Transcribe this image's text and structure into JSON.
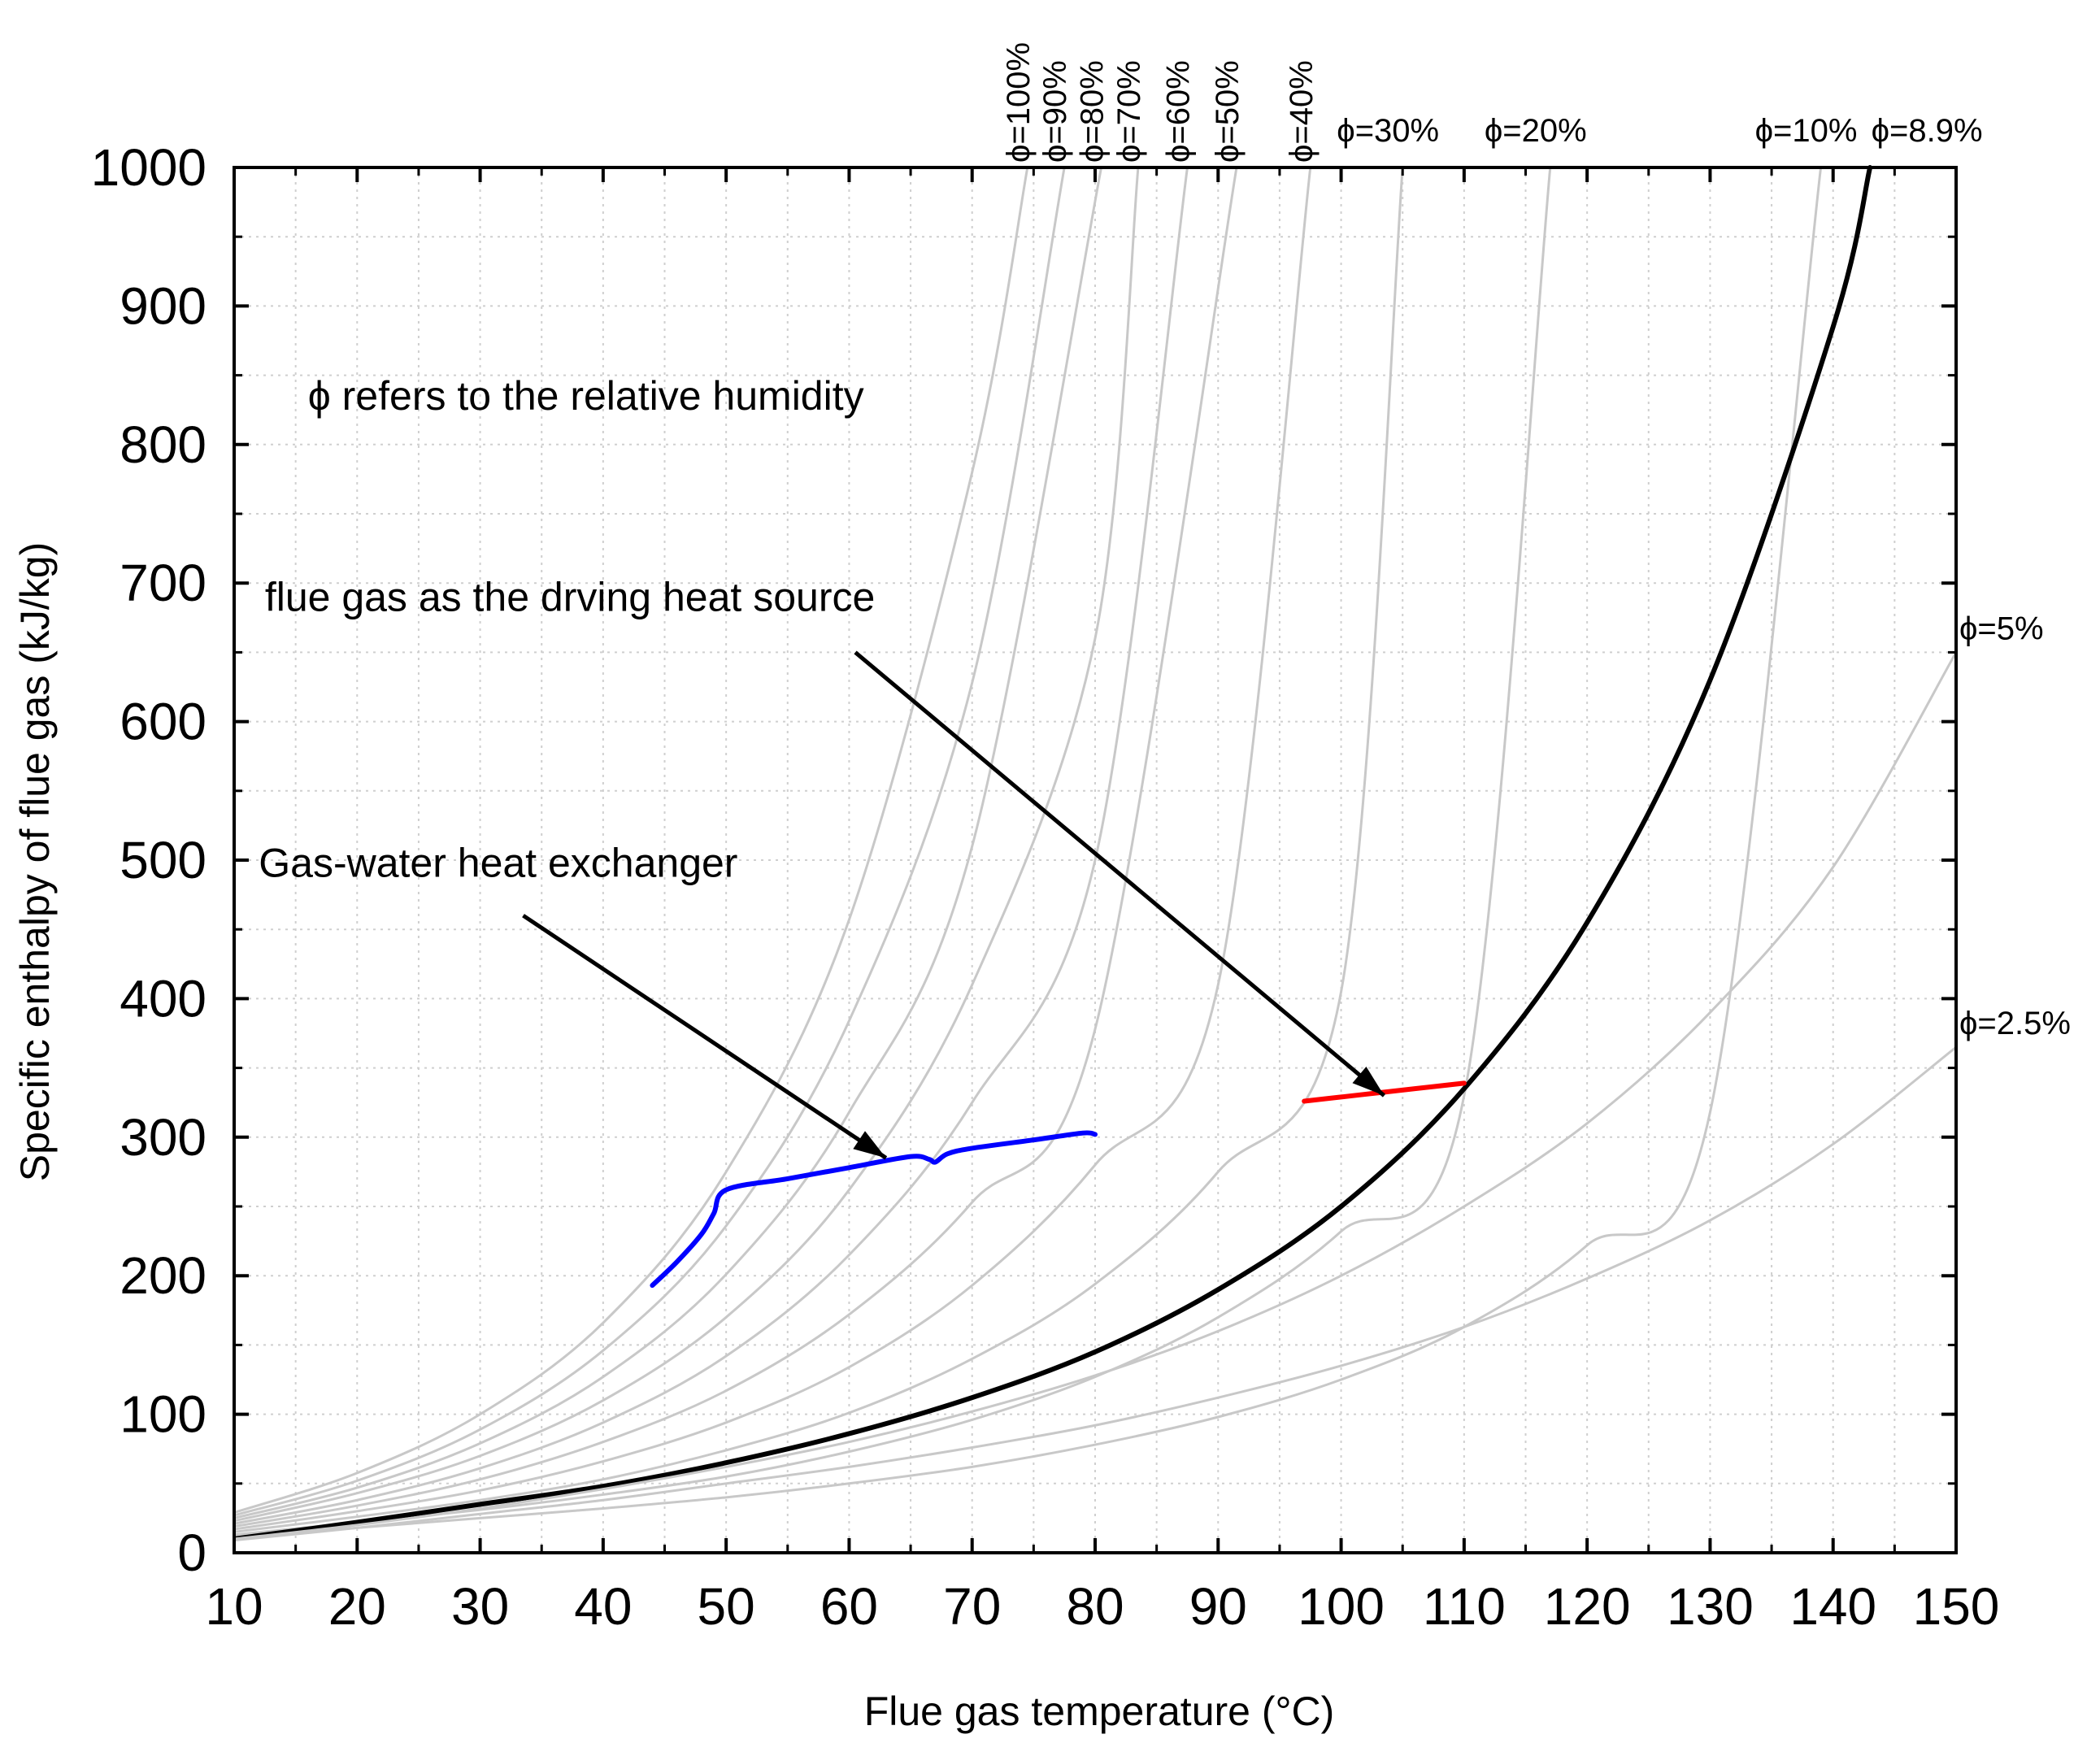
{
  "chart_data": {
    "type": "line",
    "title": "",
    "xlabel": "Flue gas temperature (°C)",
    "ylabel": "Specific enthalpy of flue gas (kJ/kg)",
    "xlim": [
      10,
      150
    ],
    "ylim": [
      0,
      1000
    ],
    "x_ticks": [
      10,
      20,
      30,
      40,
      50,
      60,
      70,
      80,
      90,
      100,
      110,
      120,
      130,
      140,
      150
    ],
    "y_ticks": [
      0,
      100,
      200,
      300,
      400,
      500,
      600,
      700,
      800,
      900,
      1000
    ],
    "grid": true,
    "series": [
      {
        "name": "ϕ=100%",
        "color": "#c8c8c8",
        "label_at": [
          74.5,
          1000
        ],
        "x": [
          10,
          20,
          30,
          40,
          50,
          60,
          70,
          74.5
        ],
        "y": [
          29,
          57.6,
          100,
          166,
          275,
          457,
          780,
          1000
        ]
      },
      {
        "name": "ϕ=90%",
        "color": "#c8c8c8",
        "label_at": [
          77.5,
          1000
        ],
        "x": [
          10,
          20,
          30,
          40,
          50,
          60,
          70,
          77.5
        ],
        "y": [
          27,
          52,
          89,
          146,
          236,
          384,
          628,
          1000
        ]
      },
      {
        "name": "ϕ=80%",
        "color": "#c8c8c8",
        "label_at": [
          80.5,
          1000
        ],
        "x": [
          10,
          20,
          30,
          40,
          50,
          60,
          70,
          80.5
        ],
        "y": [
          25,
          47,
          79,
          127,
          201,
          318,
          510,
          1000
        ]
      },
      {
        "name": "ϕ=70%",
        "color": "#c8c8c8",
        "label_at": [
          83.5,
          1000
        ],
        "x": [
          10,
          20,
          30,
          40,
          50,
          60,
          70,
          80,
          83.5
        ],
        "y": [
          23,
          43,
          70,
          110,
          170,
          262,
          410,
          660,
          1000
        ]
      },
      {
        "name": "ϕ=60%",
        "color": "#c8c8c8",
        "label_at": [
          87.5,
          1000
        ],
        "x": [
          10,
          20,
          30,
          40,
          50,
          60,
          70,
          80,
          87.5
        ],
        "y": [
          21,
          38,
          61,
          94,
          142,
          215,
          325,
          500,
          1000
        ]
      },
      {
        "name": "ϕ=50%",
        "color": "#c8c8c8",
        "label_at": [
          91.5,
          1000
        ],
        "x": [
          10,
          20,
          30,
          40,
          50,
          60,
          70,
          80,
          91.5
        ],
        "y": [
          19,
          34,
          53,
          80,
          117,
          172,
          253,
          378,
          1000
        ]
      },
      {
        "name": "ϕ=40%",
        "color": "#c8c8c8",
        "label_at": [
          97.5,
          1000
        ],
        "x": [
          10,
          20,
          30,
          40,
          50,
          60,
          70,
          80,
          90,
          97.5
        ],
        "y": [
          17,
          30,
          45,
          66,
          94,
          134,
          193,
          280,
          410,
          1000
        ]
      },
      {
        "name": "ϕ=30%",
        "color": "#c8c8c8",
        "label_at": [
          105,
          1000
        ],
        "x": [
          10,
          20,
          30,
          40,
          50,
          60,
          70,
          80,
          90,
          100,
          105
        ],
        "y": [
          15,
          26,
          38,
          53,
          74,
          101,
          140,
          194,
          275,
          405,
          1000
        ]
      },
      {
        "name": "ϕ=20%",
        "color": "#c8c8c8",
        "label_at": [
          117,
          1000
        ],
        "x": [
          10,
          20,
          30,
          40,
          50,
          60,
          70,
          80,
          90,
          100,
          110,
          117
        ],
        "y": [
          13,
          22,
          31,
          42,
          55,
          73,
          96,
          127,
          170,
          232,
          330,
          1000
        ]
      },
      {
        "name": "ϕ=10%",
        "color": "#c8c8c8",
        "label_at": [
          139,
          1000
        ],
        "x": [
          10,
          20,
          30,
          40,
          50,
          60,
          70,
          80,
          90,
          100,
          110,
          120,
          130,
          139
        ],
        "y": [
          11,
          18,
          25,
          32,
          40,
          50,
          62,
          78,
          98,
          125,
          163,
          222,
          318,
          1000
        ]
      },
      {
        "name": "ϕ=8.9%",
        "color": "#000000",
        "label_at": [
          143,
          1000
        ],
        "x": [
          10,
          20,
          30,
          40,
          50,
          60,
          70,
          80,
          90,
          100,
          110,
          120,
          130,
          140,
          143
        ],
        "y": [
          10,
          22,
          35,
          48,
          65,
          86,
          112,
          145,
          190,
          250,
          335,
          455,
          630,
          885,
          1000
        ]
      },
      {
        "name": "ϕ=5%",
        "color": "#c8c8c8",
        "label_at": [
          150,
          650
        ],
        "x": [
          10,
          20,
          30,
          40,
          50,
          60,
          70,
          80,
          90,
          100,
          110,
          120,
          130,
          140,
          150
        ],
        "y": [
          10,
          20,
          32,
          46,
          62,
          80,
          102,
          128,
          160,
          200,
          250,
          310,
          390,
          495,
          650
        ]
      },
      {
        "name": "ϕ=2.5%",
        "color": "#c8c8c8",
        "label_at": [
          150,
          365
        ],
        "x": [
          10,
          20,
          30,
          40,
          50,
          60,
          70,
          80,
          90,
          100,
          110,
          120,
          130,
          140,
          150
        ],
        "y": [
          9,
          18,
          28,
          38,
          50,
          62,
          76,
          92,
          112,
          135,
          163,
          198,
          240,
          295,
          365
        ]
      },
      {
        "name": "Gas-water heat exchanger",
        "color": "#0000ff",
        "x": [
          44,
          46,
          48,
          49,
          50,
          55,
          60,
          65,
          66.5,
          67,
          68,
          70,
          75,
          79,
          80
        ],
        "y": [
          193,
          210,
          230,
          245,
          262,
          270,
          278,
          286,
          284,
          282,
          288,
          292,
          298,
          303,
          302
        ]
      },
      {
        "name": "flue gas as the drving heat source",
        "color": "#ff0000",
        "x": [
          97,
          100,
          103,
          106,
          110
        ],
        "y": [
          326,
          329,
          332,
          335,
          339
        ]
      }
    ],
    "annotations": [
      {
        "text": "ϕ refers to the relative humidity",
        "at": [
          16,
          825
        ]
      },
      {
        "text": "flue gas as the drving heat source",
        "at": [
          12.5,
          680
        ],
        "arrow_from": [
          60.5,
          650
        ],
        "arrow_to": [
          103.5,
          330
        ]
      },
      {
        "text": "Gas-water heat exchanger",
        "at": [
          12,
          488
        ],
        "arrow_from": [
          33.5,
          460
        ],
        "arrow_to": [
          63,
          285
        ]
      }
    ]
  }
}
